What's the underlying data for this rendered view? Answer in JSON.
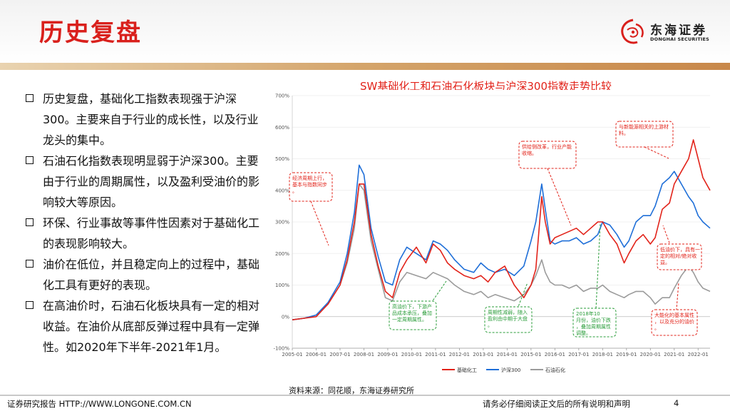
{
  "page": {
    "title": "历史复盘",
    "logo_cn": "东海证券",
    "logo_en": "DONGHAI SECURITIES",
    "footer_left": "证券研究报告 HTTP://WWW.LONGONE.COM.CN",
    "footer_right": "请务必仔细阅读正文后的所有说明和声明",
    "page_number": "4",
    "source": "资料来源：同花顺，东海证券研究所",
    "colors": {
      "brand_red": "#d9201c",
      "rule_gold": "#d4a46a"
    }
  },
  "bullets": [
    "历史复盘，基础化工指数表现强于沪深300。主要来自于行业的成长性，以及行业龙头的集中。",
    "石油石化指数表现明显弱于沪深300。主要由于行业的周期属性，以及盈利受油价的影响较大等原因。",
    "环保、行业事故等事件性因素对于基础化工的表现影响较大。",
    "油价在低位，并且稳定向上的过程中，基础化工具有更好的表现。",
    "在高油价时，石油石化板块具有一定的相对收益。在油价从底部反弹过程中具有一定弹性。如2020年下半年-2021年1月。"
  ],
  "chart_data": {
    "type": "line",
    "title": "SW基础化工和石油石化板块与沪深300指数走势比较",
    "ylim": [
      -100,
      700
    ],
    "y_ticks": [
      "-100%",
      "0%",
      "100%",
      "200%",
      "300%",
      "400%",
      "500%",
      "600%",
      "700%"
    ],
    "y_tick_values": [
      -100,
      0,
      100,
      200,
      300,
      400,
      500,
      600,
      700
    ],
    "x_range": [
      2005.0,
      2022.5
    ],
    "x_ticks": [
      "2005-01",
      "2006-01",
      "2007-01",
      "2008-01",
      "2009-01",
      "2010-01",
      "2011-01",
      "2012-01",
      "2013-01",
      "2014-01",
      "2015-01",
      "2016-01",
      "2017-01",
      "2018-01",
      "2019-01",
      "2020-01",
      "2021-01",
      "2022-01"
    ],
    "x_tick_values": [
      2005,
      2006,
      2007,
      2008,
      2009,
      2010,
      2011,
      2012,
      2013,
      2014,
      2015,
      2016,
      2017,
      2018,
      2019,
      2020,
      2021,
      2022
    ],
    "series": [
      {
        "name": "基础化工",
        "color": "#e2231a",
        "x": [
          2005.0,
          2005.5,
          2006.0,
          2006.5,
          2007.0,
          2007.3,
          2007.6,
          2007.8,
          2008.0,
          2008.3,
          2008.6,
          2008.9,
          2009.2,
          2009.5,
          2009.8,
          2010.2,
          2010.6,
          2010.9,
          2011.2,
          2011.5,
          2011.8,
          2012.2,
          2012.6,
          2012.9,
          2013.2,
          2013.5,
          2013.9,
          2014.3,
          2014.7,
          2015.0,
          2015.2,
          2015.45,
          2015.6,
          2015.8,
          2016.0,
          2016.3,
          2016.6,
          2016.9,
          2017.2,
          2017.5,
          2017.8,
          2018.0,
          2018.3,
          2018.6,
          2018.9,
          2019.1,
          2019.4,
          2019.7,
          2020.0,
          2020.2,
          2020.5,
          2020.8,
          2021.0,
          2021.3,
          2021.6,
          2021.8,
          2022.0,
          2022.2,
          2022.5
        ],
        "y": [
          -10,
          -5,
          0,
          40,
          100,
          180,
          300,
          420,
          420,
          260,
          160,
          80,
          60,
          140,
          180,
          220,
          170,
          230,
          210,
          170,
          150,
          130,
          120,
          130,
          110,
          140,
          160,
          100,
          60,
          100,
          150,
          380,
          300,
          230,
          250,
          260,
          270,
          280,
          260,
          280,
          300,
          300,
          260,
          230,
          170,
          200,
          240,
          260,
          230,
          250,
          340,
          360,
          420,
          460,
          500,
          560,
          500,
          440,
          400
        ]
      },
      {
        "name": "沪深300",
        "color": "#1f6fd8",
        "x": [
          2005.0,
          2005.5,
          2006.0,
          2006.5,
          2007.0,
          2007.3,
          2007.6,
          2007.8,
          2008.0,
          2008.3,
          2008.6,
          2008.9,
          2009.2,
          2009.5,
          2009.8,
          2010.2,
          2010.6,
          2010.9,
          2011.2,
          2011.5,
          2011.8,
          2012.2,
          2012.6,
          2012.9,
          2013.2,
          2013.5,
          2013.9,
          2014.3,
          2014.7,
          2015.0,
          2015.2,
          2015.45,
          2015.6,
          2015.8,
          2016.0,
          2016.3,
          2016.6,
          2016.9,
          2017.2,
          2017.5,
          2017.8,
          2018.0,
          2018.3,
          2018.6,
          2018.9,
          2019.1,
          2019.4,
          2019.7,
          2020.0,
          2020.2,
          2020.5,
          2020.8,
          2021.0,
          2021.3,
          2021.6,
          2021.8,
          2022.0,
          2022.2,
          2022.5
        ],
        "y": [
          -10,
          -5,
          5,
          45,
          110,
          200,
          330,
          480,
          450,
          280,
          190,
          110,
          100,
          180,
          220,
          200,
          180,
          240,
          230,
          210,
          180,
          150,
          140,
          170,
          150,
          140,
          150,
          130,
          160,
          240,
          300,
          420,
          340,
          240,
          230,
          240,
          240,
          250,
          230,
          240,
          260,
          300,
          290,
          260,
          220,
          240,
          300,
          320,
          320,
          350,
          420,
          440,
          460,
          420,
          380,
          360,
          320,
          300,
          280
        ]
      },
      {
        "name": "石油石化",
        "color": "#9b9b9b",
        "x": [
          2005.0,
          2005.5,
          2006.0,
          2006.5,
          2007.0,
          2007.3,
          2007.6,
          2007.8,
          2008.0,
          2008.3,
          2008.6,
          2008.9,
          2009.2,
          2009.5,
          2009.8,
          2010.2,
          2010.6,
          2010.9,
          2011.2,
          2011.5,
          2011.8,
          2012.2,
          2012.6,
          2012.9,
          2013.2,
          2013.5,
          2013.9,
          2014.3,
          2014.7,
          2015.0,
          2015.2,
          2015.45,
          2015.6,
          2015.8,
          2016.0,
          2016.3,
          2016.6,
          2016.9,
          2017.2,
          2017.5,
          2017.8,
          2018.0,
          2018.3,
          2018.6,
          2018.9,
          2019.1,
          2019.4,
          2019.7,
          2020.0,
          2020.2,
          2020.5,
          2020.8,
          2021.0,
          2021.3,
          2021.6,
          2021.8,
          2022.0,
          2022.2,
          2022.5
        ],
        "y": [
          -10,
          -5,
          5,
          40,
          100,
          170,
          280,
          420,
          400,
          240,
          150,
          60,
          50,
          110,
          140,
          130,
          120,
          140,
          130,
          120,
          100,
          80,
          70,
          80,
          60,
          70,
          60,
          50,
          70,
          100,
          130,
          180,
          140,
          110,
          100,
          100,
          90,
          100,
          80,
          90,
          90,
          100,
          80,
          70,
          60,
          70,
          80,
          80,
          60,
          40,
          60,
          60,
          90,
          130,
          160,
          140,
          110,
          90,
          80
        ]
      }
    ],
    "legend_position": "bottom",
    "annotations": [
      {
        "text": "经济周期上行，基本与指数同步。",
        "color": "#e2231a"
      },
      {
        "text": "供给侧改革，行业产能收缩。",
        "color": "#e2231a"
      },
      {
        "text": "与新能源相关的上游材料。",
        "color": "#e2231a"
      },
      {
        "text": "高油价下，下游产品成本承压，叠加一定周期属性。",
        "color": "#2a9d3a"
      },
      {
        "text": "周期性减弱，随入盈利由中期于大盘。",
        "color": "#2a9d3a"
      },
      {
        "text": "2018年10月份，油价下跌，叠加周期属性调整。",
        "color": "#2a9d3a"
      },
      {
        "text": "低油价下，具有一定的相对/绝对收益。",
        "color": "#e2231a"
      },
      {
        "text": "大能化的基本属性，以及充分的油价。",
        "color": "#e2231a"
      }
    ]
  }
}
